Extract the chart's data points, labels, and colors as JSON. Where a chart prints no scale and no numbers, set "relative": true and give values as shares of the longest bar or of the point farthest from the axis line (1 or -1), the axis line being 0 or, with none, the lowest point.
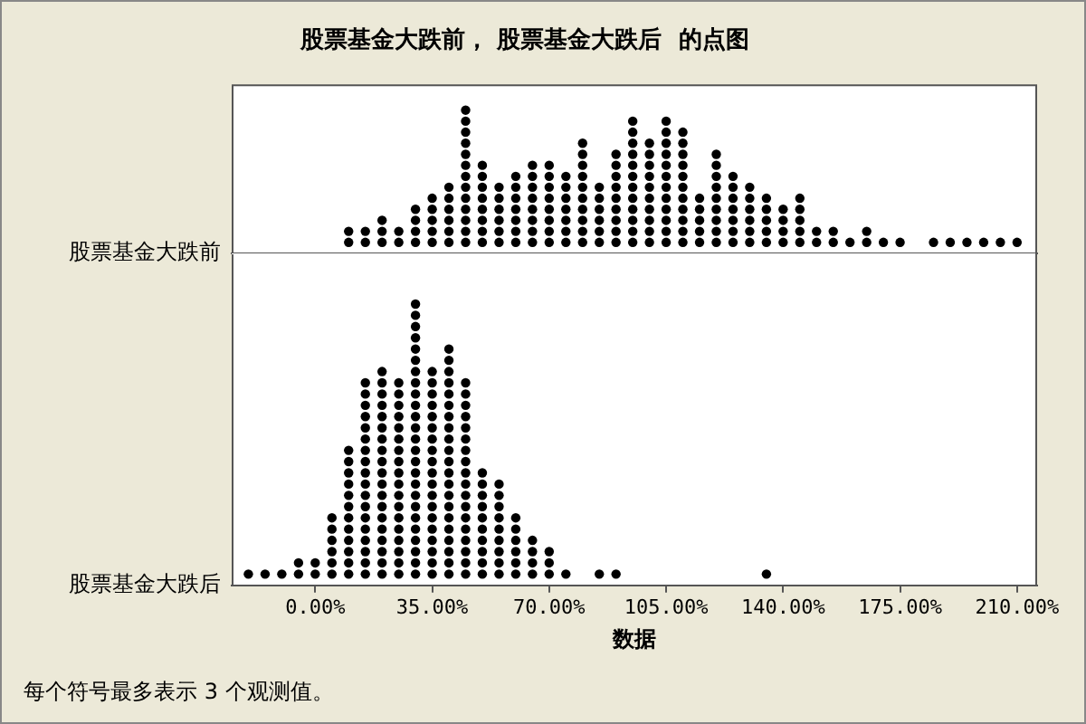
{
  "chart_data": [
    {
      "type": "scatter",
      "title": "股票基金大跌前， 股票基金大跌后  的点图",
      "relative": true,
      "tick_labels": false,
      "marker": "circle",
      "xlim": [
        -25,
        216
      ],
      "series": [
        {
          "name": "股票基金大跌前",
          "color": "#000000",
          "x": [
            10,
            10,
            15,
            15,
            20,
            20,
            20,
            25,
            25,
            30,
            30,
            30,
            30,
            35,
            35,
            35,
            35,
            35,
            40,
            40,
            40,
            40,
            40,
            40,
            45,
            45,
            45,
            45,
            45,
            45,
            45,
            45,
            45,
            45,
            45,
            45,
            45,
            50,
            50,
            50,
            50,
            50,
            50,
            50,
            50,
            55,
            55,
            55,
            55,
            55,
            55,
            60,
            60,
            60,
            60,
            60,
            60,
            60,
            65,
            65,
            65,
            65,
            65,
            65,
            65,
            65,
            70,
            70,
            70,
            70,
            70,
            70,
            70,
            70,
            75,
            75,
            75,
            75,
            75,
            75,
            75,
            80,
            80,
            80,
            80,
            80,
            80,
            80,
            80,
            80,
            80,
            85,
            85,
            85,
            85,
            85,
            85,
            90,
            90,
            90,
            90,
            90,
            90,
            90,
            90,
            90,
            95,
            95,
            95,
            95,
            95,
            95,
            95,
            95,
            95,
            95,
            95,
            95,
            100,
            100,
            100,
            100,
            100,
            100,
            100,
            100,
            100,
            100,
            105,
            105,
            105,
            105,
            105,
            105,
            105,
            105,
            105,
            105,
            105,
            105,
            110,
            110,
            110,
            110,
            110,
            110,
            110,
            110,
            110,
            110,
            110,
            115,
            115,
            115,
            115,
            115,
            120,
            120,
            120,
            120,
            120,
            120,
            120,
            120,
            120,
            125,
            125,
            125,
            125,
            125,
            125,
            125,
            130,
            130,
            130,
            130,
            130,
            130,
            135,
            135,
            135,
            135,
            135,
            140,
            140,
            140,
            140,
            145,
            145,
            145,
            145,
            145,
            150,
            150,
            155,
            155,
            160,
            165,
            165,
            170,
            175,
            185,
            190,
            195,
            200,
            205,
            210
          ],
          "values": [
            0.077,
            0.154,
            0.077,
            0.154,
            0.077,
            0.154,
            0.231,
            0.077,
            0.154,
            0.077,
            0.154,
            0.231,
            0.308,
            0.077,
            0.154,
            0.231,
            0.308,
            0.385,
            0.077,
            0.154,
            0.231,
            0.308,
            0.385,
            0.462,
            0.077,
            0.154,
            0.231,
            0.308,
            0.385,
            0.462,
            0.538,
            0.615,
            0.692,
            0.769,
            0.846,
            0.923,
            1,
            0.077,
            0.154,
            0.231,
            0.308,
            0.385,
            0.462,
            0.538,
            0.615,
            0.077,
            0.154,
            0.231,
            0.308,
            0.385,
            0.462,
            0.077,
            0.154,
            0.231,
            0.308,
            0.385,
            0.462,
            0.538,
            0.077,
            0.154,
            0.231,
            0.308,
            0.385,
            0.462,
            0.538,
            0.615,
            0.077,
            0.154,
            0.231,
            0.308,
            0.385,
            0.462,
            0.538,
            0.615,
            0.077,
            0.154,
            0.231,
            0.308,
            0.385,
            0.462,
            0.538,
            0.077,
            0.154,
            0.231,
            0.308,
            0.385,
            0.462,
            0.538,
            0.615,
            0.692,
            0.769,
            0.077,
            0.154,
            0.231,
            0.308,
            0.385,
            0.462,
            0.077,
            0.154,
            0.231,
            0.308,
            0.385,
            0.462,
            0.538,
            0.615,
            0.692,
            0.077,
            0.154,
            0.231,
            0.308,
            0.385,
            0.462,
            0.538,
            0.615,
            0.692,
            0.769,
            0.846,
            0.923,
            0.077,
            0.154,
            0.231,
            0.308,
            0.385,
            0.462,
            0.538,
            0.615,
            0.692,
            0.769,
            0.077,
            0.154,
            0.231,
            0.308,
            0.385,
            0.462,
            0.538,
            0.615,
            0.692,
            0.769,
            0.846,
            0.923,
            0.077,
            0.154,
            0.231,
            0.308,
            0.385,
            0.462,
            0.538,
            0.615,
            0.692,
            0.769,
            0.846,
            0.077,
            0.154,
            0.231,
            0.308,
            0.385,
            0.077,
            0.154,
            0.231,
            0.308,
            0.385,
            0.462,
            0.538,
            0.615,
            0.692,
            0.077,
            0.154,
            0.231,
            0.308,
            0.385,
            0.462,
            0.538,
            0.077,
            0.154,
            0.231,
            0.308,
            0.385,
            0.462,
            0.077,
            0.154,
            0.231,
            0.308,
            0.385,
            0.077,
            0.154,
            0.231,
            0.308,
            0.077,
            0.154,
            0.231,
            0.308,
            0.385,
            0.077,
            0.154,
            0.077,
            0.154,
            0.077,
            0.077,
            0.154,
            0.077,
            0.077,
            0.077,
            0.077,
            0.077,
            0.077,
            0.077,
            0.077
          ]
        }
      ]
    },
    {
      "type": "scatter",
      "xlabel": "数据",
      "relative": true,
      "tick_labels": "x",
      "marker": "circle",
      "annotations": [
        "每个符号最多表示 3 个观测值。"
      ],
      "xlim": [
        -25,
        216
      ],
      "xticks": [
        {
          "value": 0,
          "label": "0.00%"
        },
        {
          "value": 35,
          "label": "35.00%"
        },
        {
          "value": 70,
          "label": "70.00%"
        },
        {
          "value": 105,
          "label": "105.00%"
        },
        {
          "value": 140,
          "label": "140.00%"
        },
        {
          "value": 175,
          "label": "175.00%"
        },
        {
          "value": 210,
          "label": "210.00%"
        }
      ],
      "series": [
        {
          "name": "股票基金大跌后",
          "color": "#000000",
          "x": [
            -20,
            -15,
            -10,
            -5,
            -5,
            0,
            0,
            5,
            5,
            5,
            5,
            5,
            5,
            10,
            10,
            10,
            10,
            10,
            10,
            10,
            10,
            10,
            10,
            10,
            10,
            15,
            15,
            15,
            15,
            15,
            15,
            15,
            15,
            15,
            15,
            15,
            15,
            15,
            15,
            15,
            15,
            15,
            15,
            20,
            20,
            20,
            20,
            20,
            20,
            20,
            20,
            20,
            20,
            20,
            20,
            20,
            20,
            20,
            20,
            20,
            20,
            20,
            25,
            25,
            25,
            25,
            25,
            25,
            25,
            25,
            25,
            25,
            25,
            25,
            25,
            25,
            25,
            25,
            25,
            25,
            30,
            30,
            30,
            30,
            30,
            30,
            30,
            30,
            30,
            30,
            30,
            30,
            30,
            30,
            30,
            30,
            30,
            30,
            30,
            30,
            30,
            30,
            30,
            30,
            30,
            35,
            35,
            35,
            35,
            35,
            35,
            35,
            35,
            35,
            35,
            35,
            35,
            35,
            35,
            35,
            35,
            35,
            35,
            35,
            40,
            40,
            40,
            40,
            40,
            40,
            40,
            40,
            40,
            40,
            40,
            40,
            40,
            40,
            40,
            40,
            40,
            40,
            40,
            40,
            40,
            45,
            45,
            45,
            45,
            45,
            45,
            45,
            45,
            45,
            45,
            45,
            45,
            45,
            45,
            45,
            45,
            45,
            45,
            50,
            50,
            50,
            50,
            50,
            50,
            50,
            50,
            50,
            50,
            55,
            55,
            55,
            55,
            55,
            55,
            55,
            55,
            55,
            60,
            60,
            60,
            60,
            60,
            60,
            65,
            65,
            65,
            65,
            70,
            70,
            70,
            75,
            85,
            90,
            135
          ],
          "values": [
            0.04,
            0.04,
            0.04,
            0.04,
            0.08,
            0.04,
            0.08,
            0.04,
            0.08,
            0.12,
            0.16,
            0.2,
            0.24,
            0.04,
            0.08,
            0.12,
            0.16,
            0.2,
            0.24,
            0.28,
            0.32,
            0.36,
            0.4,
            0.44,
            0.48,
            0.04,
            0.08,
            0.12,
            0.16,
            0.2,
            0.24,
            0.28,
            0.32,
            0.36,
            0.4,
            0.44,
            0.48,
            0.52,
            0.56,
            0.6,
            0.64,
            0.68,
            0.72,
            0.04,
            0.08,
            0.12,
            0.16,
            0.2,
            0.24,
            0.28,
            0.32,
            0.36,
            0.4,
            0.44,
            0.48,
            0.52,
            0.56,
            0.6,
            0.64,
            0.68,
            0.72,
            0.76,
            0.04,
            0.08,
            0.12,
            0.16,
            0.2,
            0.24,
            0.28,
            0.32,
            0.36,
            0.4,
            0.44,
            0.48,
            0.52,
            0.56,
            0.6,
            0.64,
            0.68,
            0.72,
            0.04,
            0.08,
            0.12,
            0.16,
            0.2,
            0.24,
            0.28,
            0.32,
            0.36,
            0.4,
            0.44,
            0.48,
            0.52,
            0.56,
            0.6,
            0.64,
            0.68,
            0.72,
            0.76,
            0.8,
            0.84,
            0.88,
            0.92,
            0.96,
            1,
            0.04,
            0.08,
            0.12,
            0.16,
            0.2,
            0.24,
            0.28,
            0.32,
            0.36,
            0.4,
            0.44,
            0.48,
            0.52,
            0.56,
            0.6,
            0.64,
            0.68,
            0.72,
            0.76,
            0.04,
            0.08,
            0.12,
            0.16,
            0.2,
            0.24,
            0.28,
            0.32,
            0.36,
            0.4,
            0.44,
            0.48,
            0.52,
            0.56,
            0.6,
            0.64,
            0.68,
            0.72,
            0.76,
            0.8,
            0.84,
            0.04,
            0.08,
            0.12,
            0.16,
            0.2,
            0.24,
            0.28,
            0.32,
            0.36,
            0.4,
            0.44,
            0.48,
            0.52,
            0.56,
            0.6,
            0.64,
            0.68,
            0.72,
            0.04,
            0.08,
            0.12,
            0.16,
            0.2,
            0.24,
            0.28,
            0.32,
            0.36,
            0.4,
            0.04,
            0.08,
            0.12,
            0.16,
            0.2,
            0.24,
            0.28,
            0.32,
            0.36,
            0.04,
            0.08,
            0.12,
            0.16,
            0.2,
            0.24,
            0.04,
            0.08,
            0.12,
            0.16,
            0.04,
            0.08,
            0.12,
            0.04,
            0.04,
            0.04,
            0.04
          ]
        }
      ]
    }
  ]
}
